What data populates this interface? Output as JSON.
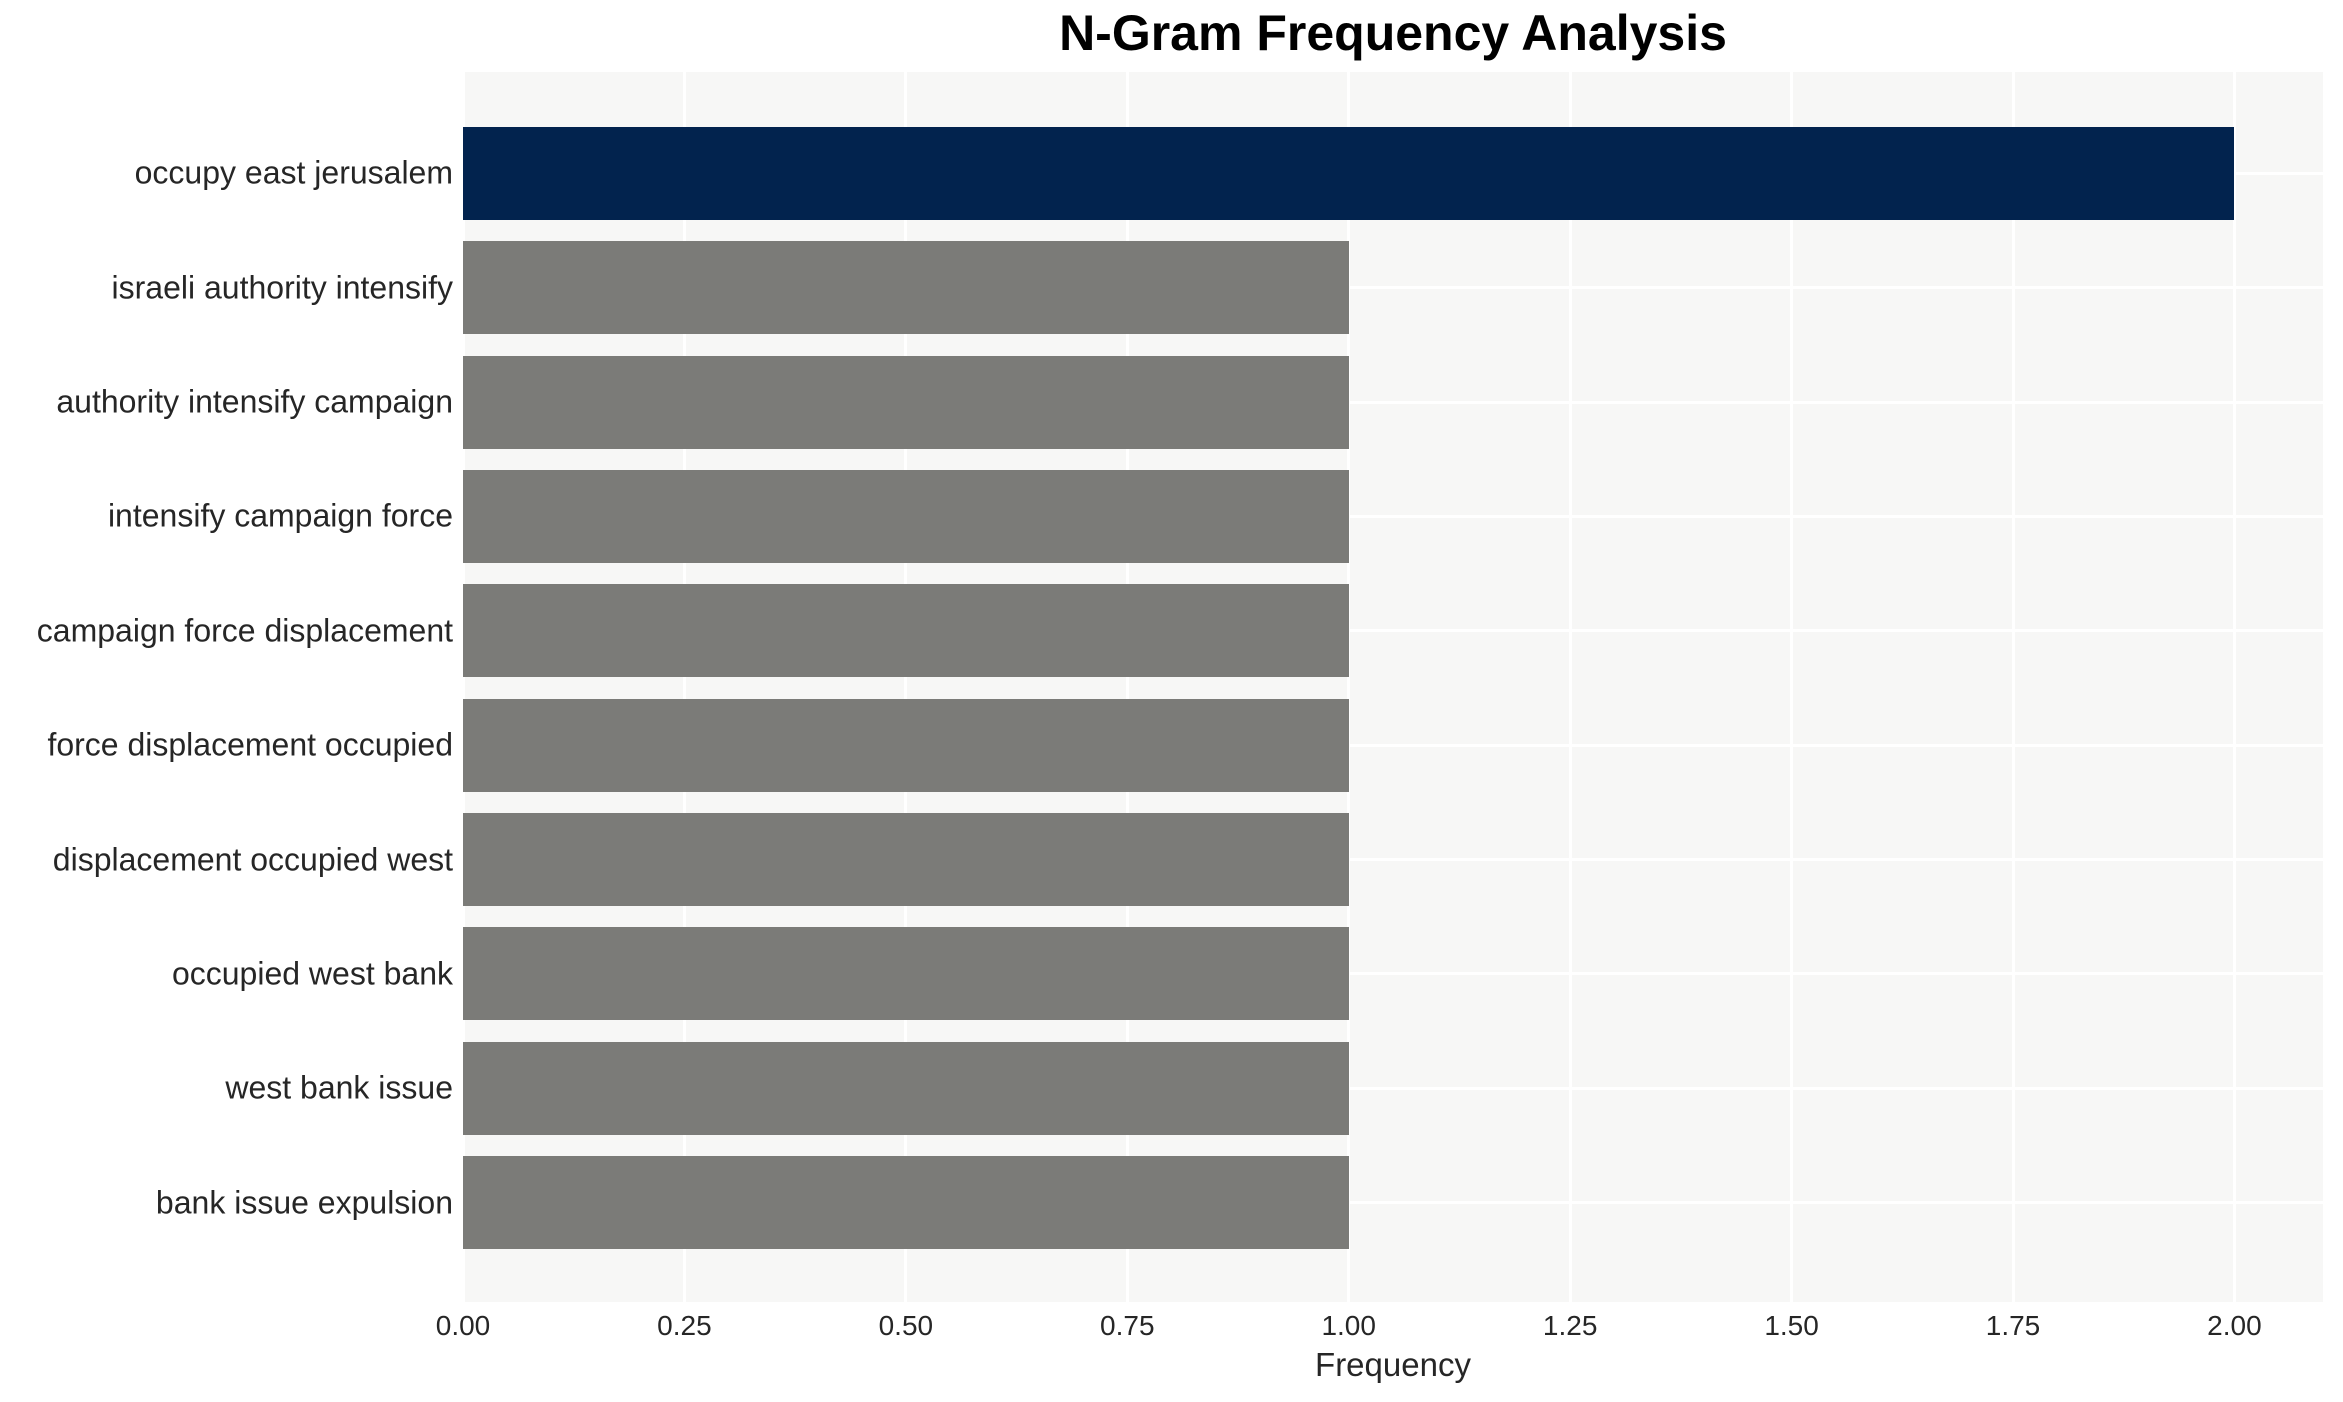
{
  "chart_data": {
    "type": "bar",
    "orientation": "horizontal",
    "title": "N-Gram Frequency Analysis",
    "xlabel": "Frequency",
    "ylabel": "",
    "categories": [
      "occupy east jerusalem",
      "israeli authority intensify",
      "authority intensify campaign",
      "intensify campaign force",
      "campaign force displacement",
      "force displacement occupied",
      "displacement occupied west",
      "occupied west bank",
      "west bank issue",
      "bank issue expulsion"
    ],
    "values": [
      2,
      1,
      1,
      1,
      1,
      1,
      1,
      1,
      1,
      1
    ],
    "bar_colors": [
      "#02234e",
      "#7b7b78",
      "#7b7b78",
      "#7b7b78",
      "#7b7b78",
      "#7b7b78",
      "#7b7b78",
      "#7b7b78",
      "#7b7b78",
      "#7b7b78"
    ],
    "xlim": [
      0,
      2.1
    ],
    "xticks": [
      {
        "value": 0.0,
        "label": "0.00"
      },
      {
        "value": 0.25,
        "label": "0.25"
      },
      {
        "value": 0.5,
        "label": "0.50"
      },
      {
        "value": 0.75,
        "label": "0.75"
      },
      {
        "value": 1.0,
        "label": "1.00"
      },
      {
        "value": 1.25,
        "label": "1.25"
      },
      {
        "value": 1.5,
        "label": "1.50"
      },
      {
        "value": 1.75,
        "label": "1.75"
      },
      {
        "value": 2.0,
        "label": "2.00"
      }
    ],
    "grid": true,
    "legend_position": "none",
    "colors": {
      "highlight_bar": "#02234e",
      "default_bar": "#7b7b78",
      "plot_background": "#f7f7f6",
      "gridline": "#ffffff",
      "text": "#262626",
      "title_text": "#000000",
      "page_background": "#ffffff"
    }
  }
}
